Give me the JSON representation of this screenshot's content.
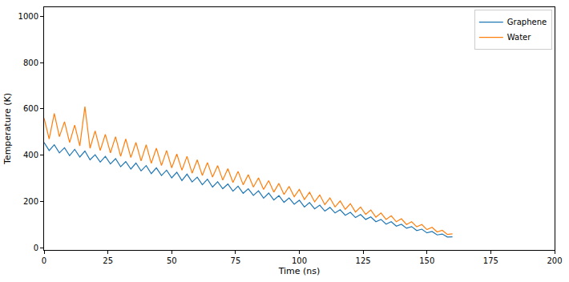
{
  "chart_data": {
    "type": "line",
    "x_label": "Time (ns)",
    "y_label": "Temperature (K)",
    "xlim": [
      0,
      200
    ],
    "ylim": [
      -10,
      1040
    ],
    "xticks": [
      0,
      25,
      50,
      75,
      100,
      125,
      150,
      175,
      200
    ],
    "yticks": [
      0,
      200,
      400,
      600,
      800,
      1000
    ],
    "grid": false,
    "legend": "upper right",
    "x": [
      0,
      2,
      4,
      6,
      8,
      10,
      12,
      14,
      16,
      18,
      20,
      22,
      24,
      26,
      28,
      30,
      32,
      34,
      36,
      38,
      40,
      42,
      44,
      46,
      48,
      50,
      52,
      54,
      56,
      58,
      60,
      62,
      64,
      66,
      68,
      70,
      72,
      74,
      76,
      78,
      80,
      82,
      84,
      86,
      88,
      90,
      92,
      94,
      96,
      98,
      100,
      102,
      104,
      106,
      108,
      110,
      112,
      114,
      116,
      118,
      120,
      122,
      124,
      126,
      128,
      130,
      132,
      134,
      136,
      138,
      140,
      142,
      144,
      146,
      148,
      150,
      152,
      154,
      156,
      158,
      160
    ],
    "series": [
      {
        "name": "Graphene",
        "color": "#1f77b4",
        "values": [
          455,
          420,
          445,
          410,
          432,
          398,
          425,
          392,
          418,
          380,
          402,
          370,
          395,
          362,
          385,
          350,
          372,
          340,
          366,
          332,
          355,
          320,
          345,
          312,
          335,
          302,
          326,
          290,
          318,
          284,
          305,
          272,
          296,
          262,
          285,
          255,
          275,
          244,
          266,
          235,
          255,
          226,
          246,
          214,
          236,
          206,
          225,
          196,
          215,
          188,
          205,
          176,
          195,
          168,
          184,
          158,
          174,
          150,
          164,
          140,
          153,
          130,
          143,
          122,
          133,
          112,
          122,
          102,
          112,
          93,
          101,
          84,
          91,
          74,
          80,
          64,
          70,
          55,
          59,
          46,
          47
        ]
      },
      {
        "name": "Water",
        "color": "#ff7f0e",
        "values": [
          560,
          470,
          580,
          480,
          545,
          455,
          530,
          440,
          610,
          430,
          505,
          420,
          490,
          410,
          480,
          395,
          470,
          390,
          455,
          375,
          445,
          365,
          430,
          355,
          420,
          345,
          405,
          335,
          395,
          322,
          380,
          312,
          368,
          305,
          355,
          292,
          342,
          282,
          330,
          272,
          316,
          262,
          302,
          252,
          290,
          240,
          278,
          230,
          265,
          220,
          252,
          208,
          240,
          198,
          228,
          186,
          215,
          176,
          202,
          166,
          190,
          154,
          176,
          144,
          163,
          132,
          150,
          122,
          138,
          112,
          125,
          100,
          112,
          90,
          100,
          78,
          88,
          68,
          75,
          57,
          60
        ]
      }
    ]
  }
}
